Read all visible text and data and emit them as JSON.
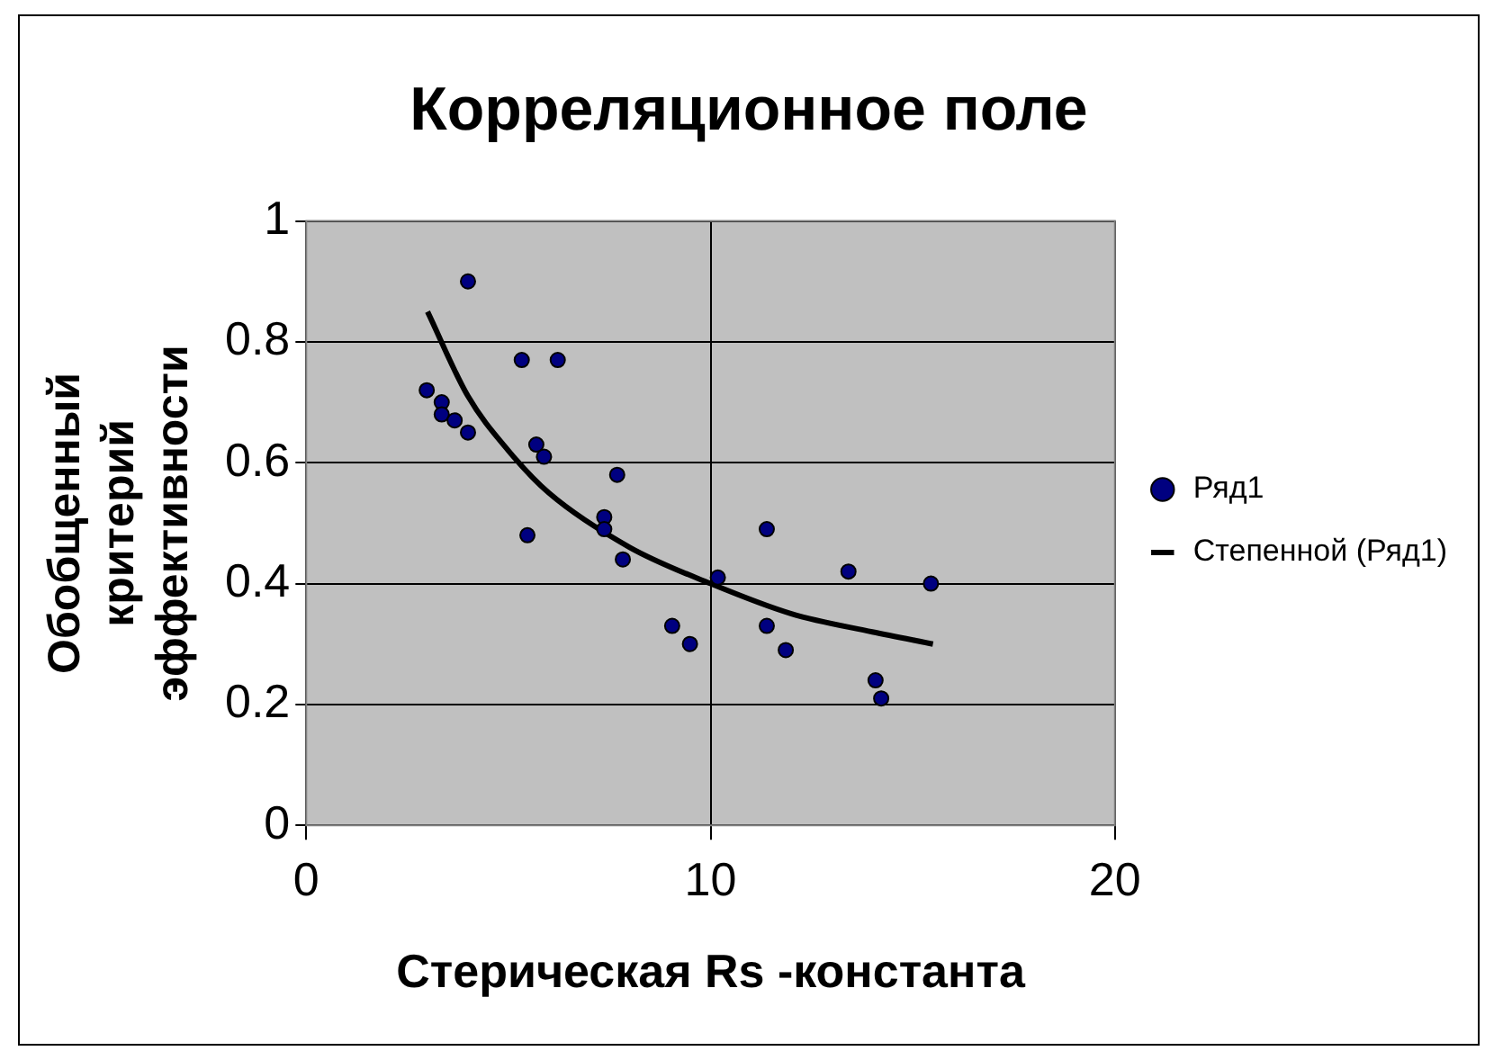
{
  "chart_data": {
    "type": "scatter",
    "title": "Корреляционное поле",
    "xlabel": "Стерическая Rs -константа",
    "ylabel": "Обобщенный критерий эффективности",
    "series": [
      {
        "name": "Ряд1",
        "marker": "circle",
        "color": "#000080",
        "x": [
          4.0,
          5.33,
          6.22,
          2.98,
          3.35,
          3.35,
          3.67,
          4.0,
          5.69,
          5.88,
          7.69,
          7.37,
          7.37,
          7.83,
          5.47,
          9.05,
          9.49,
          10.18,
          11.39,
          11.39,
          11.86,
          13.41,
          15.45,
          14.08,
          14.22
        ],
        "values": [
          0.9,
          0.77,
          0.77,
          0.72,
          0.7,
          0.68,
          0.67,
          0.65,
          0.63,
          0.61,
          0.58,
          0.51,
          0.49,
          0.44,
          0.48,
          0.33,
          0.3,
          0.41,
          0.49,
          0.33,
          0.29,
          0.42,
          0.4,
          0.24,
          0.21
        ]
      },
      {
        "name": "Степенной (Ряд1)",
        "type": "line",
        "marker": "none",
        "color": "#000000",
        "x": [
          3,
          4,
          5,
          6,
          8,
          10,
          12,
          14,
          15.5
        ],
        "values": [
          0.85,
          0.71,
          0.62,
          0.55,
          0.46,
          0.4,
          0.35,
          0.32,
          0.3
        ]
      }
    ],
    "xlim": [
      0,
      20
    ],
    "xticks": [
      0,
      10,
      20
    ],
    "ylim": [
      0,
      1
    ],
    "yticks": [
      0,
      0.2,
      0.4,
      0.6,
      0.8,
      1
    ],
    "grid": true,
    "legend": "right",
    "line_style": "solid"
  }
}
